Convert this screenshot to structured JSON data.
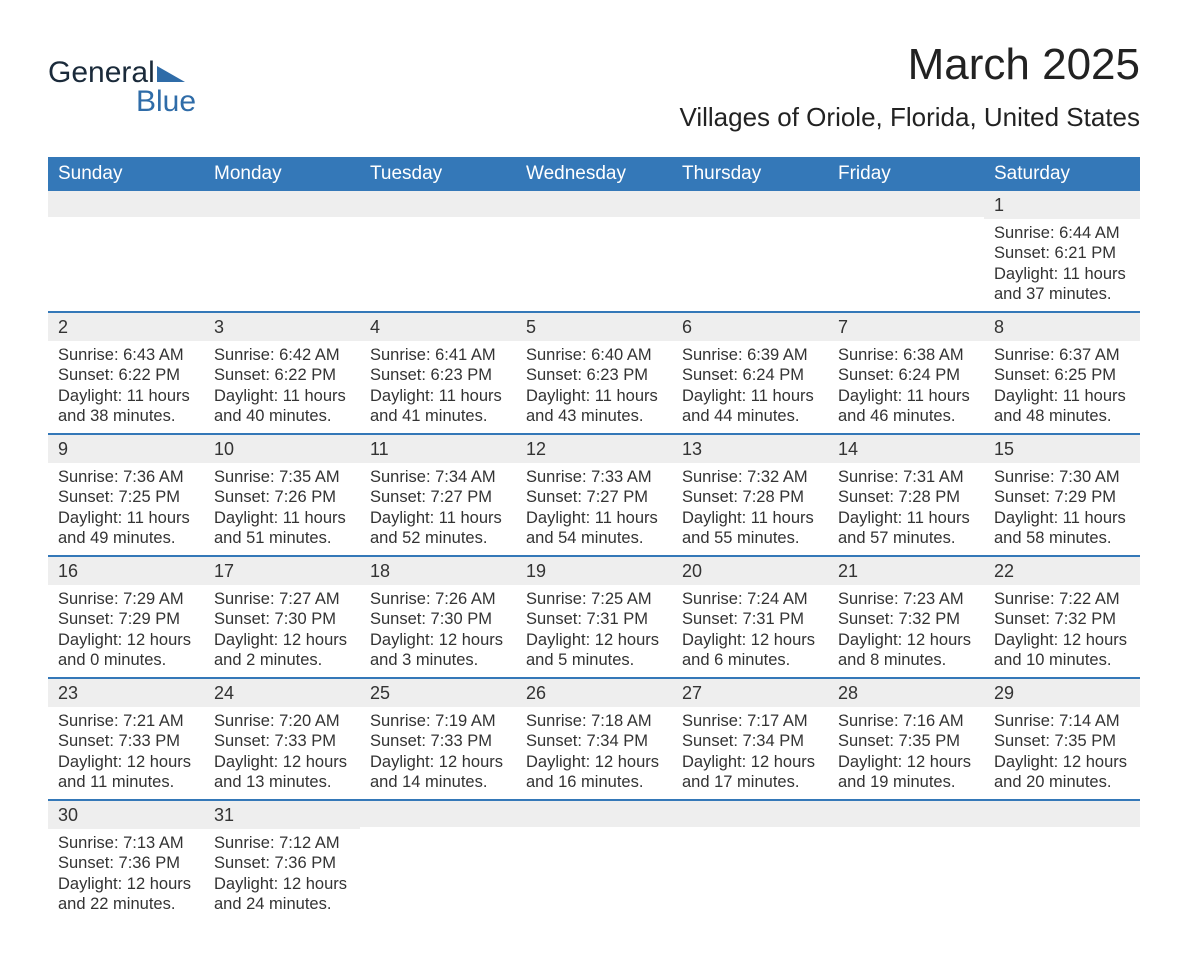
{
  "logo": {
    "text_a": "General",
    "text_b": "Blue",
    "triangle_color": "#2f6ca8"
  },
  "title": "March 2025",
  "location": "Villages of Oriole, Florida, United States",
  "colors": {
    "header_bg": "#3478b8",
    "header_fg": "#ffffff",
    "daynum_bg": "#eeeeee",
    "row_border": "#3478b8",
    "text": "#333333"
  },
  "weekdays": [
    "Sunday",
    "Monday",
    "Tuesday",
    "Wednesday",
    "Thursday",
    "Friday",
    "Saturday"
  ],
  "weeks": [
    [
      null,
      null,
      null,
      null,
      null,
      null,
      {
        "n": "1",
        "sunrise": "Sunrise: 6:44 AM",
        "sunset": "Sunset: 6:21 PM",
        "day1": "Daylight: 11 hours",
        "day2": "and 37 minutes."
      }
    ],
    [
      {
        "n": "2",
        "sunrise": "Sunrise: 6:43 AM",
        "sunset": "Sunset: 6:22 PM",
        "day1": "Daylight: 11 hours",
        "day2": "and 38 minutes."
      },
      {
        "n": "3",
        "sunrise": "Sunrise: 6:42 AM",
        "sunset": "Sunset: 6:22 PM",
        "day1": "Daylight: 11 hours",
        "day2": "and 40 minutes."
      },
      {
        "n": "4",
        "sunrise": "Sunrise: 6:41 AM",
        "sunset": "Sunset: 6:23 PM",
        "day1": "Daylight: 11 hours",
        "day2": "and 41 minutes."
      },
      {
        "n": "5",
        "sunrise": "Sunrise: 6:40 AM",
        "sunset": "Sunset: 6:23 PM",
        "day1": "Daylight: 11 hours",
        "day2": "and 43 minutes."
      },
      {
        "n": "6",
        "sunrise": "Sunrise: 6:39 AM",
        "sunset": "Sunset: 6:24 PM",
        "day1": "Daylight: 11 hours",
        "day2": "and 44 minutes."
      },
      {
        "n": "7",
        "sunrise": "Sunrise: 6:38 AM",
        "sunset": "Sunset: 6:24 PM",
        "day1": "Daylight: 11 hours",
        "day2": "and 46 minutes."
      },
      {
        "n": "8",
        "sunrise": "Sunrise: 6:37 AM",
        "sunset": "Sunset: 6:25 PM",
        "day1": "Daylight: 11 hours",
        "day2": "and 48 minutes."
      }
    ],
    [
      {
        "n": "9",
        "sunrise": "Sunrise: 7:36 AM",
        "sunset": "Sunset: 7:25 PM",
        "day1": "Daylight: 11 hours",
        "day2": "and 49 minutes."
      },
      {
        "n": "10",
        "sunrise": "Sunrise: 7:35 AM",
        "sunset": "Sunset: 7:26 PM",
        "day1": "Daylight: 11 hours",
        "day2": "and 51 minutes."
      },
      {
        "n": "11",
        "sunrise": "Sunrise: 7:34 AM",
        "sunset": "Sunset: 7:27 PM",
        "day1": "Daylight: 11 hours",
        "day2": "and 52 minutes."
      },
      {
        "n": "12",
        "sunrise": "Sunrise: 7:33 AM",
        "sunset": "Sunset: 7:27 PM",
        "day1": "Daylight: 11 hours",
        "day2": "and 54 minutes."
      },
      {
        "n": "13",
        "sunrise": "Sunrise: 7:32 AM",
        "sunset": "Sunset: 7:28 PM",
        "day1": "Daylight: 11 hours",
        "day2": "and 55 minutes."
      },
      {
        "n": "14",
        "sunrise": "Sunrise: 7:31 AM",
        "sunset": "Sunset: 7:28 PM",
        "day1": "Daylight: 11 hours",
        "day2": "and 57 minutes."
      },
      {
        "n": "15",
        "sunrise": "Sunrise: 7:30 AM",
        "sunset": "Sunset: 7:29 PM",
        "day1": "Daylight: 11 hours",
        "day2": "and 58 minutes."
      }
    ],
    [
      {
        "n": "16",
        "sunrise": "Sunrise: 7:29 AM",
        "sunset": "Sunset: 7:29 PM",
        "day1": "Daylight: 12 hours",
        "day2": "and 0 minutes."
      },
      {
        "n": "17",
        "sunrise": "Sunrise: 7:27 AM",
        "sunset": "Sunset: 7:30 PM",
        "day1": "Daylight: 12 hours",
        "day2": "and 2 minutes."
      },
      {
        "n": "18",
        "sunrise": "Sunrise: 7:26 AM",
        "sunset": "Sunset: 7:30 PM",
        "day1": "Daylight: 12 hours",
        "day2": "and 3 minutes."
      },
      {
        "n": "19",
        "sunrise": "Sunrise: 7:25 AM",
        "sunset": "Sunset: 7:31 PM",
        "day1": "Daylight: 12 hours",
        "day2": "and 5 minutes."
      },
      {
        "n": "20",
        "sunrise": "Sunrise: 7:24 AM",
        "sunset": "Sunset: 7:31 PM",
        "day1": "Daylight: 12 hours",
        "day2": "and 6 minutes."
      },
      {
        "n": "21",
        "sunrise": "Sunrise: 7:23 AM",
        "sunset": "Sunset: 7:32 PM",
        "day1": "Daylight: 12 hours",
        "day2": "and 8 minutes."
      },
      {
        "n": "22",
        "sunrise": "Sunrise: 7:22 AM",
        "sunset": "Sunset: 7:32 PM",
        "day1": "Daylight: 12 hours",
        "day2": "and 10 minutes."
      }
    ],
    [
      {
        "n": "23",
        "sunrise": "Sunrise: 7:21 AM",
        "sunset": "Sunset: 7:33 PM",
        "day1": "Daylight: 12 hours",
        "day2": "and 11 minutes."
      },
      {
        "n": "24",
        "sunrise": "Sunrise: 7:20 AM",
        "sunset": "Sunset: 7:33 PM",
        "day1": "Daylight: 12 hours",
        "day2": "and 13 minutes."
      },
      {
        "n": "25",
        "sunrise": "Sunrise: 7:19 AM",
        "sunset": "Sunset: 7:33 PM",
        "day1": "Daylight: 12 hours",
        "day2": "and 14 minutes."
      },
      {
        "n": "26",
        "sunrise": "Sunrise: 7:18 AM",
        "sunset": "Sunset: 7:34 PM",
        "day1": "Daylight: 12 hours",
        "day2": "and 16 minutes."
      },
      {
        "n": "27",
        "sunrise": "Sunrise: 7:17 AM",
        "sunset": "Sunset: 7:34 PM",
        "day1": "Daylight: 12 hours",
        "day2": "and 17 minutes."
      },
      {
        "n": "28",
        "sunrise": "Sunrise: 7:16 AM",
        "sunset": "Sunset: 7:35 PM",
        "day1": "Daylight: 12 hours",
        "day2": "and 19 minutes."
      },
      {
        "n": "29",
        "sunrise": "Sunrise: 7:14 AM",
        "sunset": "Sunset: 7:35 PM",
        "day1": "Daylight: 12 hours",
        "day2": "and 20 minutes."
      }
    ],
    [
      {
        "n": "30",
        "sunrise": "Sunrise: 7:13 AM",
        "sunset": "Sunset: 7:36 PM",
        "day1": "Daylight: 12 hours",
        "day2": "and 22 minutes."
      },
      {
        "n": "31",
        "sunrise": "Sunrise: 7:12 AM",
        "sunset": "Sunset: 7:36 PM",
        "day1": "Daylight: 12 hours",
        "day2": "and 24 minutes."
      },
      null,
      null,
      null,
      null,
      null
    ]
  ]
}
